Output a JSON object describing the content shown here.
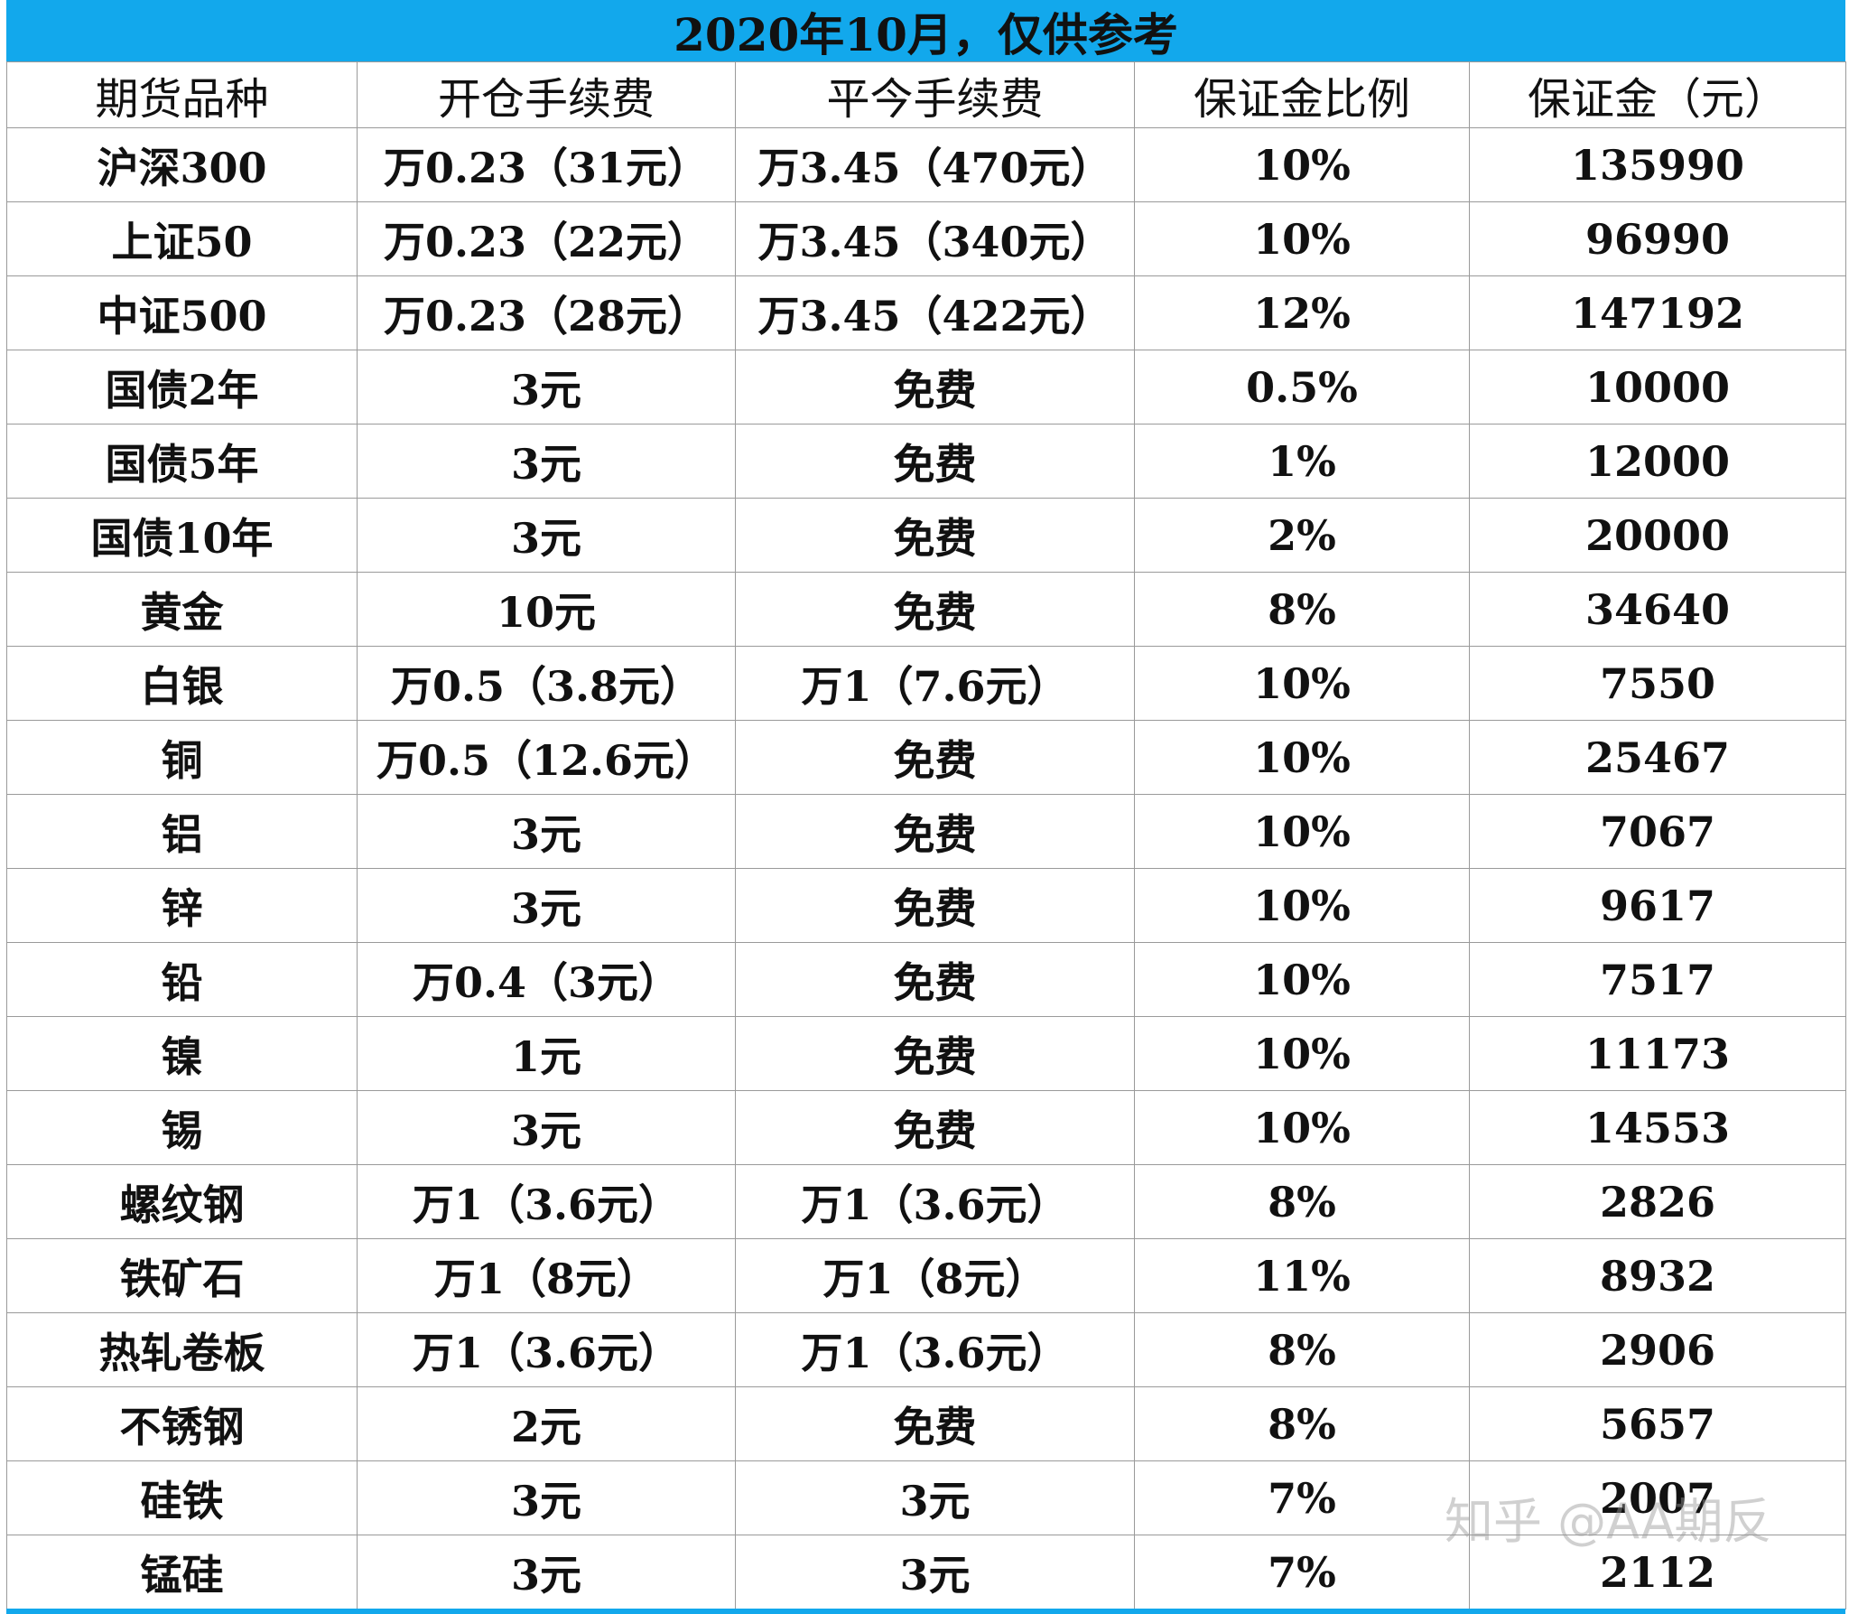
{
  "title": "2020年10月，仅供参考",
  "table": {
    "header": [
      "期货品种",
      "开仓手续费",
      "平今手续费",
      "保证金比例",
      "保证金（元）"
    ],
    "rows": [
      [
        "沪深300",
        "万0.23（31元）",
        "万3.45（470元）",
        "10%",
        "135990"
      ],
      [
        "上证50",
        "万0.23（22元）",
        "万3.45（340元）",
        "10%",
        "96990"
      ],
      [
        "中证500",
        "万0.23（28元）",
        "万3.45（422元）",
        "12%",
        "147192"
      ],
      [
        "国债2年",
        "3元",
        "免费",
        "0.5%",
        "10000"
      ],
      [
        "国债5年",
        "3元",
        "免费",
        "1%",
        "12000"
      ],
      [
        "国债10年",
        "3元",
        "免费",
        "2%",
        "20000"
      ],
      [
        "黄金",
        "10元",
        "免费",
        "8%",
        "34640"
      ],
      [
        "白银",
        "万0.5（3.8元）",
        "万1（7.6元）",
        "10%",
        "7550"
      ],
      [
        "铜",
        "万0.5（12.6元）",
        "免费",
        "10%",
        "25467"
      ],
      [
        "铝",
        "3元",
        "免费",
        "10%",
        "7067"
      ],
      [
        "锌",
        "3元",
        "免费",
        "10%",
        "9617"
      ],
      [
        "铅",
        "万0.4（3元）",
        "免费",
        "10%",
        "7517"
      ],
      [
        "镍",
        "1元",
        "免费",
        "10%",
        "11173"
      ],
      [
        "锡",
        "3元",
        "免费",
        "10%",
        "14553"
      ],
      [
        "螺纹钢",
        "万1（3.6元）",
        "万1（3.6元）",
        "8%",
        "2826"
      ],
      [
        "铁矿石",
        "万1（8元）",
        "万1（8元）",
        "11%",
        "8932"
      ],
      [
        "热轧卷板",
        "万1（3.6元）",
        "万1（3.6元）",
        "8%",
        "2906"
      ],
      [
        "不锈钢",
        "2元",
        "免费",
        "8%",
        "5657"
      ],
      [
        "硅铁",
        "3元",
        "3元",
        "7%",
        "2007"
      ],
      [
        "锰硅",
        "3元",
        "3元",
        "7%",
        "2112"
      ]
    ]
  },
  "watermark": "知乎 @AA期反"
}
